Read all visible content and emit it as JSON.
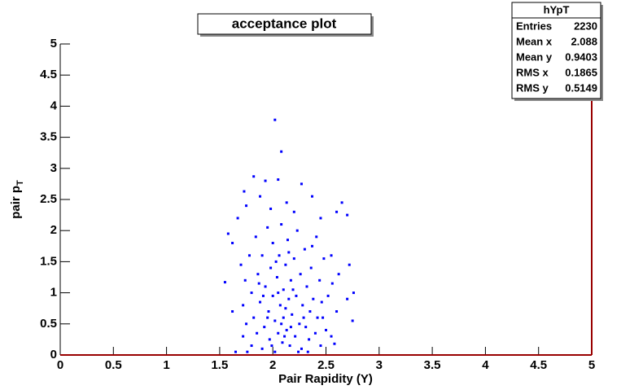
{
  "chart_data": {
    "type": "scatter",
    "title": "acceptance plot",
    "x_label": "Pair Rapidity (Y)",
    "y_label": {
      "text": "pair p",
      "subscript": "T"
    },
    "xlim": [
      0,
      5
    ],
    "ylim": [
      0,
      5
    ],
    "xticks": [
      0,
      0.5,
      1,
      1.5,
      2,
      2.5,
      3,
      3.5,
      4,
      4.5,
      5
    ],
    "yticks": [
      0,
      0.5,
      1,
      1.5,
      2,
      2.5,
      3,
      3.5,
      4,
      4.5,
      5
    ],
    "stats": {
      "name": "hYpT",
      "rows": [
        {
          "label": "Entries",
          "value": 2230
        },
        {
          "label": "Mean x",
          "value": 2.088
        },
        {
          "label": "Mean y",
          "value": 0.9403
        },
        {
          "label": "RMS x",
          "value": 0.1865
        },
        {
          "label": "RMS y",
          "value": 0.5149
        }
      ]
    },
    "series": [
      {
        "color": "#0000ff",
        "x": [
          2.02,
          2.08,
          1.82,
          1.93,
          2.05,
          2.27,
          1.73,
          1.88,
          2.37,
          2.65,
          2.13,
          1.75,
          2.6,
          1.98,
          2.2,
          1.67,
          2.45,
          2.7,
          1.62,
          1.58,
          2.72,
          2.55,
          1.55,
          2.76,
          2.7,
          2.75,
          2.58,
          1.65,
          1.62,
          2.62,
          1.72,
          1.72,
          1.74,
          1.75,
          1.78,
          1.8,
          1.8,
          1.82,
          1.84,
          1.85,
          1.86,
          1.88,
          1.9,
          1.9,
          1.92,
          1.93,
          1.95,
          1.96,
          1.97,
          1.98,
          2.0,
          2.0,
          2.02,
          2.02,
          2.04,
          2.05,
          2.06,
          2.07,
          2.08,
          2.09,
          2.1,
          2.1,
          2.12,
          2.13,
          2.14,
          2.15,
          2.16,
          2.17,
          2.18,
          2.2,
          2.21,
          2.22,
          2.23,
          2.25,
          2.26,
          2.27,
          2.28,
          2.3,
          2.31,
          2.32,
          2.34,
          2.35,
          2.36,
          2.38,
          2.4,
          2.41,
          2.42,
          2.44,
          2.45,
          2.46,
          2.48,
          2.5,
          2.52,
          2.55,
          2.56,
          2.6,
          1.76,
          1.95,
          2.05,
          2.12,
          2.19,
          2.29,
          2.03,
          1.87,
          2.15,
          2.24,
          1.99,
          2.11,
          2.33,
          1.7,
          2.47,
          2.37,
          1.91,
          2.08,
          2.17
        ],
        "y": [
          3.78,
          3.27,
          2.87,
          2.8,
          2.82,
          2.75,
          2.63,
          2.55,
          2.55,
          2.45,
          2.45,
          2.4,
          2.3,
          2.35,
          2.3,
          2.2,
          2.2,
          2.25,
          1.8,
          1.95,
          1.45,
          1.6,
          1.17,
          1.0,
          0.9,
          0.55,
          0.18,
          0.05,
          0.7,
          1.3,
          0.3,
          0.8,
          1.2,
          0.5,
          1.6,
          0.15,
          1.0,
          0.6,
          1.9,
          0.35,
          1.3,
          0.85,
          0.1,
          1.6,
          0.45,
          1.1,
          2.05,
          0.7,
          0.25,
          1.4,
          0.95,
          1.8,
          0.05,
          0.55,
          1.25,
          0.35,
          1.6,
          0.8,
          2.1,
          0.2,
          1.05,
          0.6,
          1.45,
          0.4,
          1.85,
          0.9,
          0.15,
          1.2,
          0.65,
          1.55,
          0.3,
          0.95,
          2.0,
          0.5,
          1.3,
          0.1,
          0.8,
          1.7,
          0.45,
          1.1,
          0.25,
          0.7,
          1.4,
          0.9,
          0.35,
          1.9,
          0.6,
          1.2,
          0.15,
          0.85,
          1.55,
          0.4,
          0.95,
          0.3,
          1.15,
          0.7,
          0.05,
          0.6,
          1.0,
          0.75,
          1.05,
          0.6,
          1.5,
          1.15,
          1.65,
          0.05,
          0.15,
          0.3,
          0.05,
          1.45,
          0.6,
          1.75,
          0.95,
          0.5,
          0.45
        ]
      }
    ]
  }
}
